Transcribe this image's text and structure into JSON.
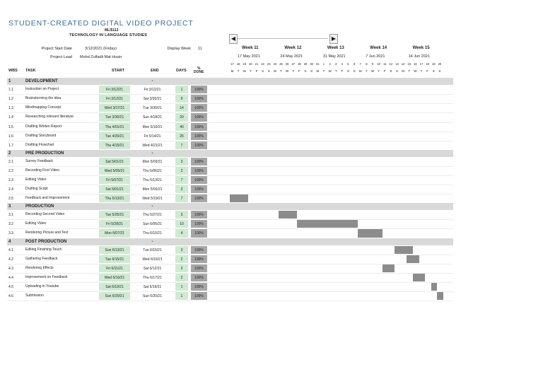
{
  "title": "STUDENT-CREATED DIGITAL VIDEO PROJECT",
  "subtitle_code": "MLI5113",
  "subtitle_course": "TECHNOLOGY IN LANGUAGE STUDIES",
  "project_start_label": "Project Start Date",
  "project_start_value": "3/12/2021 (Friday)",
  "project_lead_label": "Project Lead",
  "project_lead_value": "Mohd Zulfadli Mat Husin",
  "display_week_label": "Display Week",
  "display_week_value": "11",
  "nav": {
    "prev_icon": "triangle-left",
    "next_icon": "triangle-right"
  },
  "weeks": [
    {
      "label": "Week 11",
      "date": "17 May 2021"
    },
    {
      "label": "Week 12",
      "date": "24 May 2021"
    },
    {
      "label": "Week 13",
      "date": "31 May 2021"
    },
    {
      "label": "Week 14",
      "date": "7 Jun 2021"
    },
    {
      "label": "Week 15",
      "date": "14 Jun 2021"
    }
  ],
  "day_numbers": [
    "17",
    "18",
    "19",
    "20",
    "21",
    "22",
    "23",
    "24",
    "25",
    "26",
    "27",
    "28",
    "29",
    "30",
    "31",
    "1",
    "2",
    "3",
    "4",
    "5",
    "6",
    "7",
    "8",
    "9",
    "10",
    "11",
    "12",
    "13",
    "14",
    "15",
    "16",
    "17",
    "18",
    "19",
    "20"
  ],
  "day_letters": [
    "M",
    "T",
    "W",
    "T",
    "F",
    "S",
    "S",
    "M",
    "T",
    "W",
    "T",
    "F",
    "S",
    "S",
    "M",
    "T",
    "W",
    "T",
    "F",
    "S",
    "S",
    "M",
    "T",
    "W",
    "T",
    "F",
    "S",
    "S",
    "M",
    "T",
    "W",
    "T",
    "F",
    "S",
    "S"
  ],
  "columns": {
    "wbs": "WBS",
    "task": "TASK",
    "start": "START",
    "end": "END",
    "days": "DAYS",
    "done": "%\nDONE"
  },
  "colors": {
    "title": "#3a6d9e",
    "phase_bg": "#d9d9d9",
    "start_bg": "#cfead2",
    "done_bg": "#a6a6a6",
    "gantt_bar": "#8c8c8c"
  },
  "rows": [
    {
      "type": "phase",
      "wbs": "1",
      "task": "DEVELOPMENT",
      "end": "-"
    },
    {
      "type": "task",
      "wbs": "1.1",
      "task": "Instruction on Project",
      "start": "Fri 3/12/21",
      "end": "Fri 3/12/21",
      "days": "1",
      "done": "100%"
    },
    {
      "type": "task",
      "wbs": "1.2",
      "task": "Brainstorming the idea",
      "start": "Fri 3/12/21",
      "end": "Sat 3/20/21",
      "days": "9",
      "done": "100%"
    },
    {
      "type": "task",
      "wbs": "1.3",
      "task": "Mindmapping Concept",
      "start": "Wed 3/17/21",
      "end": "Tue 3/30/21",
      "days": "14",
      "done": "100%"
    },
    {
      "type": "task",
      "wbs": "1.4",
      "task": "Researching relevant literature",
      "start": "Tue 3/30/21",
      "end": "Sun 4/18/21",
      "days": "20",
      "done": "100%"
    },
    {
      "type": "task",
      "wbs": "1.5",
      "task": "Drafting Written Report",
      "start": "Thu 4/01/21",
      "end": "Mon 5/10/21",
      "days": "40",
      "done": "100%"
    },
    {
      "type": "task",
      "wbs": "1.6",
      "task": "Drafting Storyboard",
      "start": "Tue 4/20/21",
      "end": "Fri 5/14/21",
      "days": "25",
      "done": "100%"
    },
    {
      "type": "task",
      "wbs": "1.7",
      "task": "Drafting Flowchart",
      "start": "Thu 4/15/21",
      "end": "Wed 4/21/21",
      "days": "7",
      "done": "100%"
    },
    {
      "type": "phase",
      "wbs": "2",
      "task": "PRE PRODUCTION",
      "end": "-"
    },
    {
      "type": "task",
      "wbs": "2.1",
      "task": "Survey Feedback",
      "start": "Sat 5/01/21",
      "end": "Mon 5/03/21",
      "days": "3",
      "done": "100%"
    },
    {
      "type": "task",
      "wbs": "2.2",
      "task": "Recording First Video",
      "start": "Wed 5/05/21",
      "end": "Thu 5/06/21",
      "days": "2",
      "done": "100%"
    },
    {
      "type": "task",
      "wbs": "2.3",
      "task": "Editing Video",
      "start": "Fri 5/07/21",
      "end": "Thu 5/13/21",
      "days": "7",
      "done": "100%"
    },
    {
      "type": "task",
      "wbs": "2.4",
      "task": "Drafting Script",
      "start": "Sat 5/01/21",
      "end": "Mon 5/03/21",
      "days": "3",
      "done": "100%"
    },
    {
      "type": "task",
      "wbs": "2.5",
      "task": "Feedback and Improvement",
      "start": "Thu 5/13/21",
      "end": "Wed 5/19/21",
      "days": "7",
      "done": "100%"
    },
    {
      "type": "phase",
      "wbs": "3",
      "task": "PRODUCTION",
      "end": "-"
    },
    {
      "type": "task",
      "wbs": "3.1",
      "task": "Recording Second Video",
      "start": "Tue 5/25/21",
      "end": "Thu 5/27/21",
      "days": "3",
      "done": "100%"
    },
    {
      "type": "task",
      "wbs": "3.2",
      "task": "Editing Video",
      "start": "Fri 5/28/21",
      "end": "Sun 6/06/21",
      "days": "10",
      "done": "100%"
    },
    {
      "type": "task",
      "wbs": "3.3",
      "task": "Rendering Picture and Text",
      "start": "Mon 6/07/21",
      "end": "Thu 6/10/21",
      "days": "4",
      "done": "100%"
    },
    {
      "type": "phase",
      "wbs": "4",
      "task": "POST PRODUCTION",
      "end": "-"
    },
    {
      "type": "task",
      "wbs": "4.1",
      "task": "Editing Finishing Touch",
      "start": "Sun 6/13/21",
      "end": "Tue 6/15/21",
      "days": "3",
      "done": "100%"
    },
    {
      "type": "task",
      "wbs": "4.2",
      "task": "Gathering Feedback",
      "start": "Tue 6/15/21",
      "end": "Wed 6/16/21",
      "days": "2",
      "done": "100%"
    },
    {
      "type": "task",
      "wbs": "4.3",
      "task": "Rendering Effects",
      "start": "Fri 6/11/21",
      "end": "Sat 6/12/21",
      "days": "2",
      "done": "100%"
    },
    {
      "type": "task",
      "wbs": "4.4",
      "task": "Improvement on Feedback",
      "start": "Wed 6/16/21",
      "end": "Thu 6/17/21",
      "days": "2",
      "done": "100%"
    },
    {
      "type": "task",
      "wbs": "4.5",
      "task": "Uploading in Youtube",
      "start": "Sat 6/19/21",
      "end": "Sat 6/19/21",
      "days": "1",
      "done": "100%"
    },
    {
      "type": "task",
      "wbs": "4.6",
      "task": "Submission",
      "start": "Sun 6/20/21",
      "end": "Sun 6/20/21",
      "days": "1",
      "done": "100%"
    }
  ],
  "timeline_start": "2021-05-17"
}
